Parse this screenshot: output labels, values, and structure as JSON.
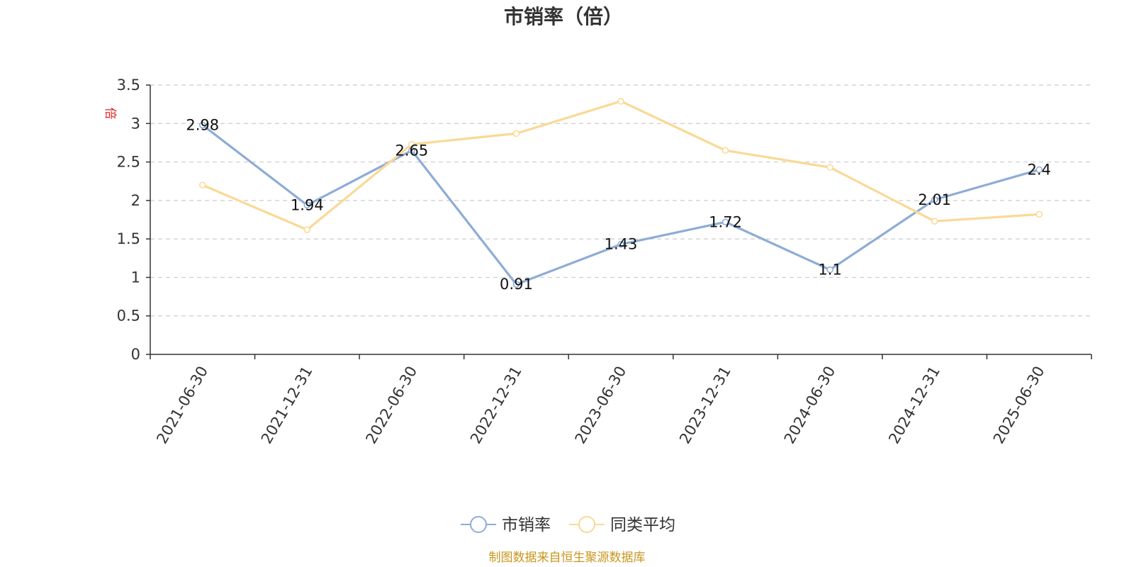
{
  "colors": {
    "series1": "#8eacd6",
    "series2": "#fad996",
    "grid": "#cccccc",
    "axis": "#333333"
  },
  "source": "制图数据来自恒生聚源数据库",
  "chart_data": {
    "type": "line",
    "title": "市销率（倍）",
    "ylabel": "倍",
    "xlabel": "",
    "ylim": [
      0,
      3.5
    ],
    "yticks": [
      0,
      0.5,
      1,
      1.5,
      2,
      2.5,
      3,
      3.5
    ],
    "ytick_labels": [
      "0",
      "0.5",
      "1",
      "1.5",
      "2",
      "2.5",
      "3",
      "3.5"
    ],
    "grid": true,
    "legend_position": "bottom-center",
    "categories": [
      "2021-06-30",
      "2021-12-31",
      "2022-06-30",
      "2022-12-31",
      "2023-06-30",
      "2023-12-31",
      "2024-06-30",
      "2024-12-31",
      "2025-06-30"
    ],
    "series": [
      {
        "name": "市销率",
        "values": [
          2.98,
          1.94,
          2.65,
          0.91,
          1.43,
          1.72,
          1.1,
          2.01,
          2.4
        ],
        "value_labels": [
          "2.98",
          "1.94",
          "2.65",
          "0.91",
          "1.43",
          "1.72",
          "1.1",
          "2.01",
          "2.4"
        ],
        "show_labels": true
      },
      {
        "name": "同类平均",
        "values": [
          2.2,
          1.62,
          2.73,
          2.87,
          3.29,
          2.65,
          2.43,
          1.73,
          1.82
        ],
        "show_labels": false
      }
    ]
  }
}
